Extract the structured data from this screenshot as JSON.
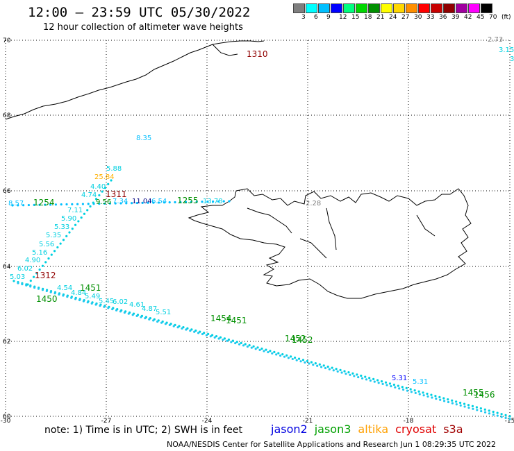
{
  "header": {
    "title": "12:00 – 23:59 UTC 05/30/2022",
    "subtitle": "12 hour collection of altimeter wave heights"
  },
  "legend": {
    "colors": [
      "#7f7f7f",
      "#00ffff",
      "#00bfff",
      "#0000ff",
      "#00ff7f",
      "#00d700",
      "#008f00",
      "#ffff00",
      "#ffd700",
      "#ff8f00",
      "#ff0000",
      "#c80000",
      "#900000",
      "#a0009f",
      "#ff00ff",
      "#000000"
    ],
    "ticks": [
      "3",
      "6",
      "9",
      "12",
      "15",
      "18",
      "21",
      "24",
      "27",
      "30",
      "33",
      "36",
      "39",
      "42",
      "45",
      "70",
      "(ft)"
    ]
  },
  "axes": {
    "lat_labels": [
      "70",
      "68",
      "66",
      "64",
      "62",
      "60"
    ],
    "lon_labels": [
      "-30",
      "-27",
      "-24",
      "-21",
      "-18",
      "-15"
    ]
  },
  "observations": [
    {
      "text": "3.15",
      "color": "#00d0e0"
    },
    {
      "text": "2.73",
      "color": "#7f7f7f"
    },
    {
      "text": "3",
      "color": "#00d0e0"
    },
    {
      "text": "1310",
      "color": "#900000"
    },
    {
      "text": "8.35",
      "color": "#00bfff"
    },
    {
      "text": "5.88",
      "color": "#00d0e0"
    },
    {
      "text": "25.84",
      "color": "#ffb000"
    },
    {
      "text": "4.40",
      "color": "#00d0e0"
    },
    {
      "text": "1311",
      "color": "#900000"
    },
    {
      "text": "4.74",
      "color": "#00d0e0"
    },
    {
      "text": "8.57",
      "color": "#00bfff"
    },
    {
      "text": "1254",
      "color": "#008f00"
    },
    {
      "text": "9.56",
      "color": "#008f00"
    },
    {
      "text": "7.34",
      "color": "#00bfff"
    },
    {
      "text": "11.04",
      "color": "#000080"
    },
    {
      "text": "6.54",
      "color": "#00bfff"
    },
    {
      "text": "1255",
      "color": "#008f00"
    },
    {
      "text": "13.78",
      "color": "#00d0e0"
    },
    {
      "text": "2.28",
      "color": "#7f7f7f"
    },
    {
      "text": "7.11",
      "color": "#00d0e0"
    },
    {
      "text": "5.90",
      "color": "#00d0e0"
    },
    {
      "text": "5.33",
      "color": "#00d0e0"
    },
    {
      "text": "5.35",
      "color": "#00d0e0"
    },
    {
      "text": "5.56",
      "color": "#00d0e0"
    },
    {
      "text": "5.16",
      "color": "#00d0e0"
    },
    {
      "text": "4.90",
      "color": "#00d0e0"
    },
    {
      "text": "6.02",
      "color": "#00d0e0"
    },
    {
      "text": "5.03",
      "color": "#00d0e0"
    },
    {
      "text": "1312",
      "color": "#900000"
    },
    {
      "text": "1450",
      "color": "#008f00"
    },
    {
      "text": "1451",
      "color": "#008f00"
    },
    {
      "text": "4.54",
      "color": "#00d0e0"
    },
    {
      "text": "4.84",
      "color": "#00d0e0"
    },
    {
      "text": "5.49",
      "color": "#00d0e0"
    },
    {
      "text": "5.45",
      "color": "#00d0e0"
    },
    {
      "text": "6.02",
      "color": "#00d0e0"
    },
    {
      "text": "4.61",
      "color": "#00d0e0"
    },
    {
      "text": "4.87",
      "color": "#00d0e0"
    },
    {
      "text": "5.51",
      "color": "#00d0e0"
    },
    {
      "text": "1454",
      "color": "#008f00"
    },
    {
      "text": "1451",
      "color": "#008f00"
    },
    {
      "text": "1452",
      "color": "#008f00"
    },
    {
      "text": "1452",
      "color": "#008f00"
    },
    {
      "text": "5.31",
      "color": "#0000ff"
    },
    {
      "text": "5.31",
      "color": "#00bfff"
    },
    {
      "text": "1455",
      "color": "#008f00"
    },
    {
      "text": "1456",
      "color": "#008f00"
    }
  ],
  "footer": {
    "note": "note:  1) Time is in UTC;  2) SWH is in feet",
    "satellites": [
      {
        "name": "jason2",
        "color": "#0000e0"
      },
      {
        "name": "jason3",
        "color": "#00a000"
      },
      {
        "name": "altika",
        "color": "#ffa000"
      },
      {
        "name": "cryosat",
        "color": "#e00000"
      },
      {
        "name": "s3a",
        "color": "#a00000"
      }
    ],
    "credit": "NOAA/NESDIS Center for Satellite Applications and Research   Jun  1 08:29:35 UTC 2022"
  }
}
